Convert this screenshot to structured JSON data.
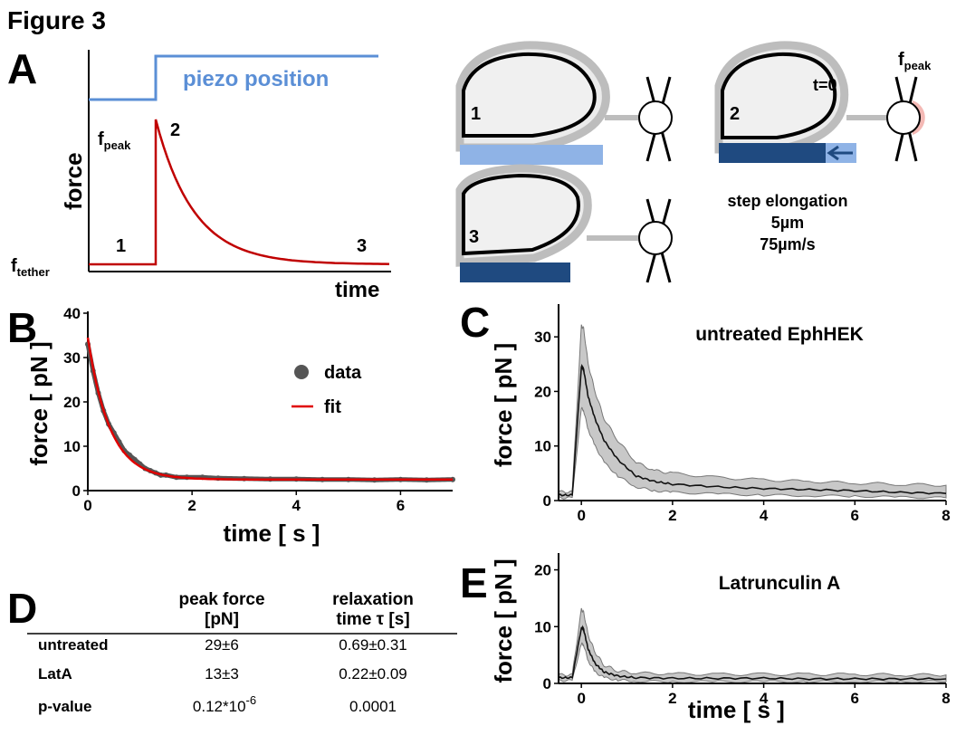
{
  "figure": {
    "title": "Figure 3",
    "panel_labels": {
      "A": "A",
      "B": "B",
      "C": "C",
      "D": "D",
      "E": "E"
    }
  },
  "panelA": {
    "piezo_label": "piezo position",
    "y_label": "force",
    "x_label": "time",
    "f_peak_main": "f",
    "f_peak_sub": "peak",
    "f_tether_main": "f",
    "f_tether_sub": "tether",
    "markers": [
      "1",
      "2",
      "3"
    ],
    "colors": {
      "piezo": "#5b8fd6",
      "force": "#c00000"
    }
  },
  "schematic": {
    "states": [
      "1",
      "2",
      "3"
    ],
    "t0_label": "t=0",
    "f_peak_main": "f",
    "f_peak_sub": "peak",
    "step_title": "step elongation",
    "step_distance": "5µm",
    "step_speed": "75µm/s",
    "colors": {
      "light_bar": "#8fb3e6",
      "dark_bar": "#1f4a80",
      "bead_fill": "#f4b9b5"
    }
  },
  "chart_data": [
    {
      "type": "scatter",
      "panel": "B",
      "xlabel": "time [ s ]",
      "ylabel": "force [ pN ]",
      "xlim": [
        0,
        7
      ],
      "ylim": [
        0,
        40
      ],
      "xticks": [
        "0",
        "2",
        "4",
        "6"
      ],
      "yticks": [
        "0",
        "10",
        "20",
        "30",
        "40"
      ],
      "legend": [
        "data",
        "fit"
      ],
      "legend_position": "top-right",
      "fit": {
        "f0": 2.5,
        "amplitude": 32,
        "tau": 0.42
      },
      "series": [
        {
          "name": "data",
          "color": "#555555",
          "x": [
            0,
            0.1,
            0.2,
            0.3,
            0.4,
            0.5,
            0.6,
            0.7,
            0.8,
            0.9,
            1.0,
            1.1,
            1.2,
            1.3,
            1.4,
            1.5,
            1.7,
            1.9,
            2.2,
            2.5,
            3.0,
            3.5,
            4.0,
            4.5,
            5.0,
            5.5,
            6.0,
            6.5,
            7.0
          ],
          "y": [
            33,
            27,
            22,
            18,
            15,
            13,
            11,
            9,
            8,
            7,
            6,
            5,
            4.5,
            4,
            3.5,
            3.5,
            3,
            3,
            3,
            2.8,
            2.7,
            2.6,
            2.6,
            2.5,
            2.5,
            2.4,
            2.5,
            2.4,
            2.5
          ]
        },
        {
          "name": "fit",
          "color": "#e00000"
        }
      ]
    },
    {
      "type": "line",
      "panel": "C",
      "title": "untreated EphHEK",
      "ylabel": "force [ pN ]",
      "xlim": [
        -0.5,
        8
      ],
      "ylim": [
        0,
        35
      ],
      "xticks": [
        "0",
        "2",
        "4",
        "6",
        "8"
      ],
      "yticks": [
        "0",
        "10",
        "20",
        "30"
      ],
      "x": [
        -0.5,
        -0.2,
        0,
        0.05,
        0.15,
        0.3,
        0.5,
        0.8,
        1.2,
        1.6,
        2,
        3,
        4,
        5,
        6,
        7,
        8
      ],
      "mean": [
        1,
        1,
        24.5,
        24,
        19,
        15,
        11,
        7.5,
        4.5,
        3.5,
        3,
        2.5,
        2.2,
        2,
        1.8,
        1.5,
        1.3
      ],
      "upper": [
        1.6,
        1.6,
        32,
        31.5,
        25,
        20,
        15,
        11,
        7,
        5.5,
        5,
        4.2,
        3.8,
        3.5,
        3.2,
        3,
        2.8
      ],
      "lower": [
        0.5,
        0.5,
        17,
        16.5,
        13,
        10,
        7,
        4.5,
        2.5,
        1.8,
        1.5,
        1.2,
        1,
        0.9,
        0.8,
        0.6,
        0.5
      ]
    },
    {
      "type": "line",
      "panel": "E",
      "title": "Latrunculin A",
      "xlabel": "time [ s ]",
      "ylabel": "force [ pN ]",
      "xlim": [
        -0.5,
        8
      ],
      "ylim": [
        0,
        22
      ],
      "xticks": [
        "0",
        "2",
        "4",
        "6",
        "8"
      ],
      "yticks": [
        "0",
        "10",
        "20"
      ],
      "x": [
        -0.5,
        -0.2,
        0,
        0.05,
        0.15,
        0.3,
        0.5,
        0.8,
        1.2,
        2,
        3,
        4,
        5,
        6,
        7,
        8
      ],
      "mean": [
        1,
        1,
        9.8,
        9.5,
        6,
        3.5,
        2,
        1.3,
        1,
        0.9,
        0.9,
        0.9,
        0.8,
        0.8,
        0.8,
        0.8
      ],
      "upper": [
        1.5,
        1.5,
        13,
        12.5,
        8.5,
        5.5,
        3.2,
        2.2,
        1.8,
        1.7,
        1.6,
        1.6,
        1.6,
        1.6,
        1.5,
        1.5
      ],
      "lower": [
        0.5,
        0.5,
        7,
        6.8,
        4,
        2,
        1,
        0.6,
        0.4,
        0.3,
        0.3,
        0.3,
        0.3,
        0.3,
        0.3,
        0.3
      ]
    }
  ],
  "table": {
    "headers": [
      "",
      "peak force [pN]",
      "relaxation time τ [s]"
    ],
    "header_lines": [
      [
        "peak force",
        "[pN]"
      ],
      [
        "relaxation",
        "time τ [s]"
      ]
    ],
    "rows": [
      {
        "label": "untreated",
        "peak": "29±6",
        "tau": "0.69±0.31"
      },
      {
        "label": "LatA",
        "peak": "13±3",
        "tau": "0.22±0.09"
      },
      {
        "label": "p-value",
        "peak_main": "0.12*10",
        "peak_exp": "-6",
        "tau": "0.0001"
      }
    ]
  }
}
